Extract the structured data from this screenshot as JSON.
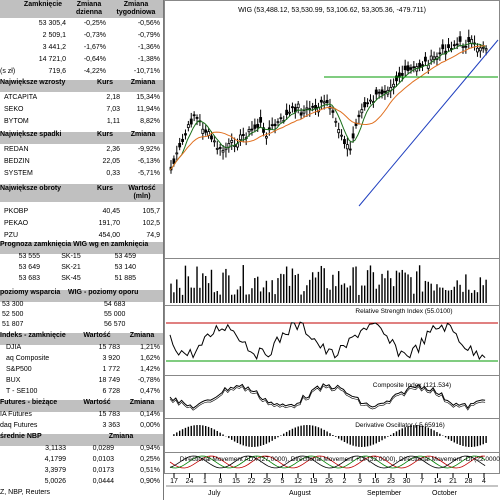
{
  "indices": {
    "headers": [
      "Zamknięcie",
      "Zmiana dzienna",
      "Zmiana tygodniowa"
    ],
    "rows": [
      {
        "name": "",
        "close": "53 305,4",
        "day": "-0,25%",
        "week": "-0,56%"
      },
      {
        "name": "",
        "close": "2 509,1",
        "day": "-0,73%",
        "week": "-0,79%"
      },
      {
        "name": "",
        "close": "3 441,2",
        "day": "-1,67%",
        "week": "-1,36%"
      },
      {
        "name": "",
        "close": "14 721,0",
        "day": "-0,64%",
        "week": "-1,38%"
      },
      {
        "name": "(s zł)",
        "close": "719,6",
        "day": "-4,22%",
        "week": "-10,71%"
      }
    ]
  },
  "gainers": {
    "title": "Największe wzrosty",
    "headers": [
      "Kurs",
      "Zmiana"
    ],
    "rows": [
      {
        "name": "ATCAPITA",
        "price": "2,18",
        "change": "15,34%"
      },
      {
        "name": "SEKO",
        "price": "7,03",
        "change": "11,94%"
      },
      {
        "name": "BYTOM",
        "price": "1,11",
        "change": "8,82%"
      }
    ]
  },
  "losers": {
    "title": "Największe spadki",
    "headers": [
      "Kurs",
      "Zmiana"
    ],
    "rows": [
      {
        "name": "REDAN",
        "price": "2,36",
        "change": "-9,92%"
      },
      {
        "name": "BEDZIN",
        "price": "22,05",
        "change": "-6,13%"
      },
      {
        "name": "SYSTEM",
        "price": "0,33",
        "change": "-5,71%"
      }
    ]
  },
  "turnover": {
    "title": "Największe obroty",
    "headers": [
      "Kurs",
      "Wartość (mln)"
    ],
    "rows": [
      {
        "name": "PKOBP",
        "price": "40,45",
        "value": "105,7"
      },
      {
        "name": "PEKAO",
        "price": "191,70",
        "value": "102,5"
      },
      {
        "name": "PZU",
        "price": "454,00",
        "value": "74,9"
      }
    ]
  },
  "projection": {
    "title": "Prognoza zamknięcia WIG wg en zamknięcia",
    "rows": [
      [
        "53 555",
        "SK-15",
        "53 459"
      ],
      [
        "53 649",
        "SK-21",
        "53 140"
      ],
      [
        "53 683",
        "SK-45",
        "51 885"
      ]
    ]
  },
  "levels": {
    "headers": [
      "poziomy wsparcia",
      "WIG - poziomy oporu"
    ],
    "rows": [
      [
        "53 300",
        "54 683"
      ],
      [
        "52 500",
        "55 000"
      ],
      [
        "51 807",
        "56 570"
      ]
    ]
  },
  "world": {
    "headers": [
      "Indeks - zamknięcie",
      "Wartość",
      "Zmiana"
    ],
    "rows": [
      {
        "name": "DJIA",
        "value": "15 783",
        "change": "1,21%"
      },
      {
        "name": "aq Composite",
        "value": "3 920",
        "change": "1,62%"
      },
      {
        "name": "S&P500",
        "value": "1 772",
        "value2": "",
        "change": "1,42%"
      },
      {
        "name": "BUX",
        "value": "18 749",
        "change": "-0,78%"
      },
      {
        "name": "T - SE100",
        "value": "6 728",
        "change": "0,47%"
      }
    ]
  },
  "futures": {
    "headers": [
      "Futures - bieżące",
      "Wartość",
      "Zmiana"
    ],
    "rows": [
      {
        "name": "IA Futures",
        "value": "15 783",
        "change": "0,14%"
      },
      {
        "name": "daq Futures",
        "value": "3 363",
        "change": "0,00%"
      }
    ]
  },
  "fx": {
    "headers": [
      "średnie NBP",
      "Zmiana"
    ],
    "rows": [
      [
        "3,1133",
        "0,0289",
        "0,94%"
      ],
      [
        "4,1799",
        "0,0103",
        "0,25%"
      ],
      [
        "3,3979",
        "0,0173",
        "0,51%"
      ],
      [
        "5,0026",
        "0,0444",
        "0,90%"
      ]
    ]
  },
  "footer": "Z, NBP, Reuters",
  "chart": {
    "main_title": "WIG (53,488.12, 53,530.99, 53,106.62, 53,305.36, -479.711)",
    "rsi_title": "Relative Strength Index (55.0100)",
    "composite_title": "Composite Index (121.534)",
    "deriv_title": "Derivative Oscillator (-5.65916)",
    "dmi_title": "Directional Movement ADX (27.0000), Directional Movement +DI (33.0000), Directional Movement -DI (22.0000)",
    "date_labels": [
      "17",
      "24",
      "1",
      "8",
      "15",
      "22",
      "29",
      "5",
      "12",
      "19",
      "26",
      "2",
      "9",
      "16",
      "23",
      "30",
      "7",
      "14",
      "21",
      "28",
      "4"
    ],
    "month_labels": [
      "July",
      "August",
      "September",
      "October"
    ],
    "colors": {
      "candle_up": "#ffffff",
      "candle_down": "#000000",
      "ma_short": "#1a6e1a",
      "ma_long": "#e07020",
      "trend": "#1f3fbf",
      "rsi_top": "#c00000",
      "rsi_bottom": "#009900",
      "support": "#009900"
    }
  }
}
